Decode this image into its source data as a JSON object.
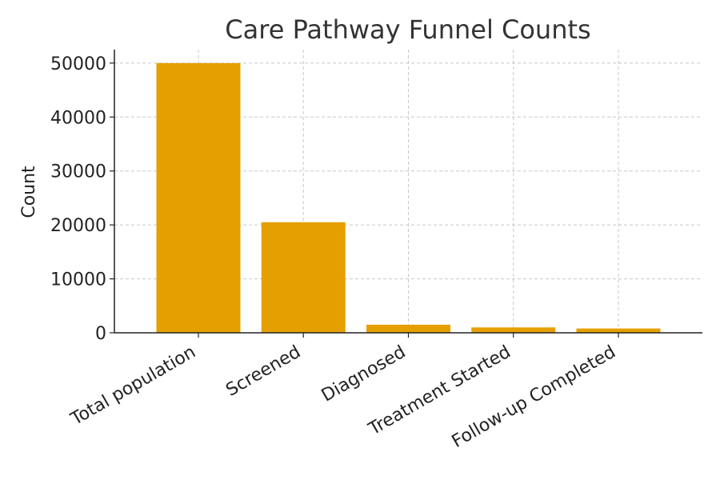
{
  "chart_data": {
    "type": "bar",
    "title": "Care Pathway Funnel Counts",
    "xlabel": "",
    "ylabel": "Count",
    "categories": [
      "Total population",
      "Screened",
      "Diagnosed",
      "Treatment Started",
      "Follow-up Completed"
    ],
    "values": [
      50000,
      20500,
      1500,
      1000,
      800
    ],
    "ylim": [
      0,
      52500
    ],
    "yticks": [
      0,
      10000,
      20000,
      30000,
      40000,
      50000
    ],
    "ytick_labels": [
      "0",
      "10000",
      "20000",
      "30000",
      "40000",
      "50000"
    ],
    "grid": true,
    "x_tick_rotation": 30,
    "colors": {
      "bar": "#E69F00",
      "grid": "#c8c8c8",
      "axis": "#222222",
      "text": "#222222",
      "title": "#333333"
    }
  }
}
